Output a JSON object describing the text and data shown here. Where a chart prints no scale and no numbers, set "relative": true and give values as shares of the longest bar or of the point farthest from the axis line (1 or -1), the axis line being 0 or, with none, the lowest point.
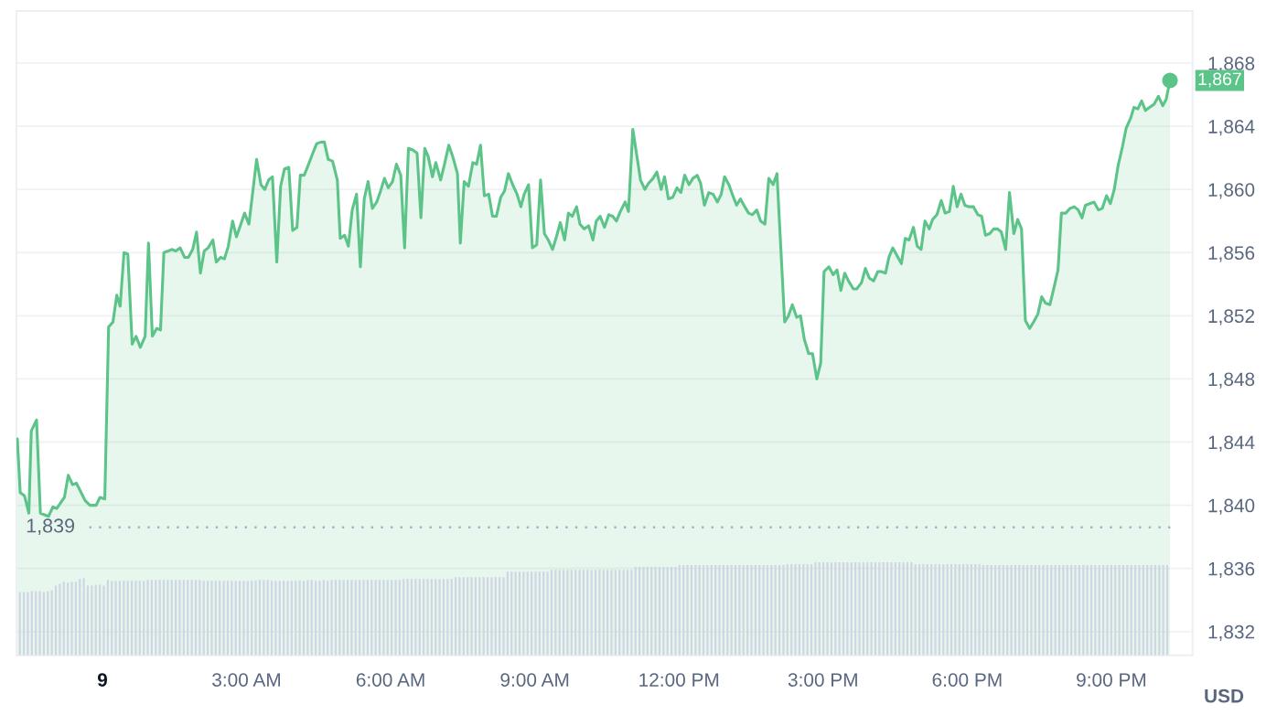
{
  "chart_data": [
    {
      "type": "line",
      "ylabel": "USD",
      "xlim": [
        -1.79,
        22.69
      ],
      "xticks": [
        {
          "value": 3,
          "label": "3:00 AM"
        },
        {
          "value": 6,
          "label": "6:00 AM"
        },
        {
          "value": 9,
          "label": "9:00 AM"
        },
        {
          "value": 12,
          "label": "12:00 PM"
        },
        {
          "value": 15,
          "label": "3:00 PM"
        },
        {
          "value": 18,
          "label": "6:00 PM"
        },
        {
          "value": 21,
          "label": "9:00 PM"
        }
      ],
      "annotations": [
        "9"
      ],
      "ylim": [
        1830.5,
        1871.3
      ],
      "yticks": [
        {
          "value": 1832,
          "label": "1,832"
        },
        {
          "value": 1836,
          "label": "1,836"
        },
        {
          "value": 1840,
          "label": "1,840"
        },
        {
          "value": 1844,
          "label": "1,844"
        },
        {
          "value": 1848,
          "label": "1,848"
        },
        {
          "value": 1852,
          "label": "1,852"
        },
        {
          "value": 1856,
          "label": "1,856"
        },
        {
          "value": 1860,
          "label": "1,860"
        },
        {
          "value": 1864,
          "label": "1,864"
        },
        {
          "value": 1868,
          "label": "1,868"
        }
      ],
      "grid": "y",
      "ref_lines": [
        {
          "axis": "y",
          "value": 1838.6,
          "label": "1,839",
          "line_style": "dotted",
          "color": "#a6b0c3"
        }
      ],
      "series": [
        {
          "type": "area",
          "color": "#5cc489",
          "x": [
            -1.77,
            -1.71,
            -1.62,
            -1.53,
            -1.48,
            -1.37,
            -1.29,
            -1.12,
            -1.03,
            -0.95,
            -0.79,
            -0.71,
            -0.62,
            -0.54,
            -0.36,
            -0.26,
            -0.13,
            -0.05,
            0.05,
            0.13,
            0.22,
            0.3,
            0.37,
            0.45,
            0.53,
            0.62,
            0.7,
            0.79,
            0.89,
            0.96,
            1.04,
            1.13,
            1.21,
            1.28,
            1.37,
            1.44,
            1.53,
            1.62,
            1.71,
            1.79,
            1.88,
            1.96,
            2.04,
            2.12,
            2.2,
            2.3,
            2.37,
            2.46,
            2.54,
            2.62,
            2.71,
            2.79,
            2.87,
            2.96,
            3.05,
            3.21,
            3.3,
            3.38,
            3.46,
            3.54,
            3.63,
            3.71,
            3.79,
            3.88,
            3.96,
            4.05,
            4.12,
            4.2,
            4.28,
            4.38,
            4.46,
            4.55,
            4.62,
            4.7,
            4.79,
            4.89,
            4.95,
            5.04,
            5.12,
            5.2,
            5.29,
            5.37,
            5.45,
            5.53,
            5.62,
            5.71,
            5.79,
            5.87,
            5.95,
            6.04,
            6.12,
            6.21,
            6.29,
            6.37,
            6.46,
            6.55,
            6.63,
            6.71,
            6.78,
            6.87,
            6.94,
            7.04,
            7.12,
            7.21,
            7.29,
            7.39,
            7.45,
            7.53,
            7.62,
            7.71,
            7.79,
            7.87,
            7.95,
            8.04,
            8.12,
            8.2,
            8.29,
            8.37,
            8.45,
            8.54,
            8.63,
            8.71,
            8.78,
            8.87,
            8.95,
            9.04,
            9.12,
            9.2,
            9.28,
            9.37,
            9.45,
            9.53,
            9.62,
            9.7,
            9.78,
            9.87,
            9.94,
            10.03,
            10.12,
            10.21,
            10.28,
            10.36,
            10.45,
            10.54,
            10.62,
            10.7,
            10.78,
            10.88,
            10.95,
            11.04,
            11.12,
            11.2,
            11.29,
            11.37,
            11.46,
            11.54,
            11.63,
            11.7,
            11.78,
            11.87,
            11.96,
            12.04,
            12.12,
            12.21,
            12.29,
            12.38,
            12.45,
            12.53,
            12.62,
            12.71,
            12.8,
            12.88,
            12.95,
            13.04,
            13.11,
            13.2,
            13.28,
            13.37,
            13.45,
            13.53,
            13.62,
            13.7,
            13.79,
            13.87,
            13.96,
            14.04,
            14.2,
            14.28,
            14.36,
            14.45,
            14.53,
            14.61,
            14.7,
            14.78,
            14.87,
            14.95,
            15.02,
            15.12,
            15.21,
            15.29,
            15.37,
            15.45,
            15.53,
            15.63,
            15.7,
            15.8,
            15.88,
            15.96,
            16.05,
            16.14,
            16.21,
            16.3,
            16.37,
            16.45,
            16.54,
            16.63,
            16.71,
            16.79,
            16.88,
            16.96,
            17.04,
            17.12,
            17.21,
            17.28,
            17.37,
            17.46,
            17.54,
            17.63,
            17.71,
            17.79,
            17.87,
            17.95,
            18.04,
            18.13,
            18.22,
            18.3,
            18.38,
            18.47,
            18.55,
            18.63,
            18.71,
            18.8,
            18.88,
            18.97,
            19.05,
            19.13,
            19.21,
            19.3,
            19.38,
            19.47,
            19.55,
            19.63,
            19.72,
            19.8,
            19.89,
            19.96,
            20.05,
            20.14,
            20.23,
            20.31,
            20.39,
            20.46,
            20.55,
            20.64,
            20.73,
            20.81,
            20.9,
            20.98,
            21.06,
            21.14,
            21.23,
            21.31,
            21.4,
            21.47,
            21.55,
            21.63,
            21.71,
            21.8,
            21.89,
            21.98,
            22.07,
            22.14,
            22.22
          ],
          "values": [
            1844.2,
            1840.8,
            1840.6,
            1839.5,
            1844.7,
            1845.4,
            1839.5,
            1839.3,
            1839.9,
            1839.8,
            1840.5,
            1841.9,
            1841.3,
            1841.4,
            1840.3,
            1840.0,
            1840.0,
            1840.5,
            1840.4,
            1851.3,
            1851.6,
            1853.3,
            1852.6,
            1856.0,
            1855.9,
            1850.2,
            1850.7,
            1850.0,
            1850.7,
            1856.6,
            1850.7,
            1851.2,
            1851.1,
            1856.0,
            1856.1,
            1856.2,
            1856.1,
            1856.3,
            1855.7,
            1855.7,
            1856.2,
            1857.3,
            1854.7,
            1856.1,
            1856.3,
            1856.8,
            1855.4,
            1855.7,
            1855.6,
            1856.4,
            1858.0,
            1857.0,
            1857.7,
            1858.5,
            1857.8,
            1861.9,
            1860.3,
            1860.0,
            1860.6,
            1860.8,
            1855.4,
            1860.2,
            1861.3,
            1861.4,
            1857.4,
            1857.6,
            1860.9,
            1860.9,
            1861.5,
            1862.3,
            1862.9,
            1863.0,
            1863.0,
            1861.9,
            1861.8,
            1860.6,
            1856.9,
            1857.1,
            1856.4,
            1858.7,
            1859.7,
            1855.1,
            1859.4,
            1860.5,
            1858.8,
            1859.2,
            1859.9,
            1860.7,
            1860.1,
            1860.5,
            1861.6,
            1860.9,
            1856.3,
            1862.6,
            1862.5,
            1862.3,
            1858.2,
            1862.6,
            1862.1,
            1860.8,
            1861.7,
            1860.6,
            1861.6,
            1862.8,
            1862.1,
            1861.0,
            1856.6,
            1860.5,
            1860.2,
            1861.7,
            1861.6,
            1862.8,
            1859.6,
            1859.7,
            1858.3,
            1858.3,
            1859.5,
            1859.9,
            1861.0,
            1860.3,
            1859.7,
            1858.9,
            1859.7,
            1860.3,
            1856.3,
            1856.5,
            1860.6,
            1857.2,
            1856.8,
            1856.2,
            1857.0,
            1857.9,
            1856.8,
            1858.5,
            1858.3,
            1858.9,
            1857.8,
            1857.5,
            1857.7,
            1856.8,
            1858.0,
            1858.3,
            1857.6,
            1858.4,
            1858.3,
            1858.0,
            1858.6,
            1859.2,
            1858.6,
            1863.8,
            1862.2,
            1860.6,
            1860.0,
            1860.4,
            1860.7,
            1861.1,
            1860.0,
            1860.8,
            1859.4,
            1859.5,
            1860.1,
            1859.8,
            1860.9,
            1860.3,
            1860.7,
            1860.9,
            1860.4,
            1859.0,
            1859.8,
            1859.7,
            1859.2,
            1859.7,
            1860.8,
            1860.3,
            1859.7,
            1859.0,
            1859.4,
            1858.9,
            1858.5,
            1858.4,
            1858.7,
            1858.0,
            1857.8,
            1860.7,
            1860.3,
            1861.0,
            1851.6,
            1852.0,
            1852.7,
            1851.9,
            1852.0,
            1850.5,
            1849.6,
            1849.6,
            1848.0,
            1849.0,
            1854.8,
            1855.1,
            1854.6,
            1854.9,
            1853.6,
            1854.7,
            1854.2,
            1853.7,
            1853.7,
            1854.1,
            1855.0,
            1854.4,
            1854.2,
            1854.8,
            1854.8,
            1854.7,
            1855.7,
            1856.3,
            1855.8,
            1855.3,
            1856.9,
            1856.8,
            1857.6,
            1856.4,
            1856.2,
            1858.0,
            1857.5,
            1858.1,
            1858.4,
            1859.3,
            1858.5,
            1858.6,
            1860.2,
            1858.9,
            1859.7,
            1859.0,
            1858.9,
            1858.9,
            1858.4,
            1858.3,
            1857.1,
            1857.2,
            1857.5,
            1857.5,
            1857.3,
            1856.2,
            1859.8,
            1857.2,
            1858.1,
            1857.5,
            1851.7,
            1851.2,
            1851.6,
            1852.1,
            1853.2,
            1852.8,
            1852.7,
            1853.7,
            1854.9,
            1858.5,
            1858.5,
            1858.8,
            1858.9,
            1858.7,
            1858.2,
            1859.0,
            1859.1,
            1859.2,
            1858.7,
            1858.8,
            1859.6,
            1859.1,
            1860.0,
            1861.5,
            1862.7,
            1863.9,
            1864.5,
            1865.2,
            1865.1,
            1865.6,
            1865.0,
            1865.2,
            1865.4,
            1865.9,
            1865.3,
            1865.7,
            1866.9
          ]
        },
        {
          "type": "scatter",
          "color": "#5cc489",
          "marker": "circle",
          "x": [
            22.22
          ],
          "values": [
            1866.9
          ],
          "value_labels": [
            "1,867"
          ]
        }
      ]
    },
    {
      "type": "bar",
      "relative": true,
      "color": "#cfd5e3",
      "categories": [
        null,
        null,
        null,
        null,
        null,
        null,
        null,
        null,
        null,
        null,
        null,
        null,
        null,
        null,
        null,
        null,
        null,
        null,
        null,
        null,
        null,
        null,
        null,
        null,
        null,
        null,
        null,
        null,
        null,
        null,
        null,
        null,
        null,
        null,
        null,
        null,
        null,
        null,
        null,
        null,
        null,
        null,
        null,
        null,
        null,
        null,
        null,
        null,
        null,
        null,
        null,
        null,
        null,
        null,
        null,
        null,
        null,
        null,
        null,
        null,
        null,
        null,
        null,
        null,
        null,
        null,
        null,
        null,
        null,
        null,
        null,
        null,
        null,
        null,
        null,
        null,
        null,
        null,
        null,
        null,
        null,
        null,
        null,
        null,
        null,
        null,
        null,
        null,
        null,
        null,
        null,
        null,
        null,
        null,
        null,
        null,
        null,
        null,
        null,
        null,
        null,
        null,
        null,
        null,
        null,
        null,
        null,
        null,
        null,
        null,
        null,
        null,
        null,
        null,
        null,
        null,
        null,
        null,
        null,
        null,
        null,
        null,
        null,
        null,
        null,
        null,
        null,
        null,
        null,
        null,
        null,
        null,
        null,
        null,
        null,
        null,
        null,
        null,
        null,
        null,
        null,
        null,
        null,
        null,
        null,
        null,
        null,
        null,
        null,
        null,
        null,
        null,
        null,
        null,
        null,
        null,
        null,
        null,
        null,
        null,
        null,
        null,
        null,
        null,
        null,
        null,
        null,
        null,
        null,
        null,
        null,
        null,
        null,
        null,
        null,
        null,
        null,
        null,
        null,
        null,
        null,
        null,
        null,
        null,
        null,
        null,
        null,
        null,
        null,
        null,
        null,
        null,
        null,
        null,
        null,
        null,
        null,
        null,
        null,
        null,
        null,
        null,
        null,
        null,
        null,
        null,
        null,
        null,
        null,
        null,
        null,
        null,
        null,
        null,
        null,
        null,
        null,
        null,
        null,
        null,
        null,
        null,
        null,
        null,
        null,
        null,
        null,
        null,
        null,
        null,
        null,
        null,
        null,
        null,
        null,
        null,
        null,
        null,
        null,
        null,
        null,
        null,
        null,
        null,
        null,
        null,
        null,
        null,
        null,
        null,
        null,
        null,
        null,
        null,
        null,
        null,
        null,
        null,
        null,
        null,
        null,
        null,
        null,
        null,
        null,
        null,
        null,
        null,
        null,
        null,
        null,
        null,
        null,
        null,
        null,
        null,
        null,
        null,
        null,
        null,
        null,
        null,
        null,
        null,
        null,
        null,
        null,
        null
      ],
      "values": [
        0.68,
        0.68,
        0.68,
        0.69,
        0.69,
        0.69,
        0.68,
        0.69,
        0.7,
        0.75,
        0.77,
        0.79,
        0.78,
        0.79,
        0.79,
        0.82,
        0.83,
        0.75,
        0.75,
        0.76,
        0.76,
        0.75,
        0.81,
        0.8,
        0.8,
        0.8,
        0.8,
        0.8,
        0.8,
        0.8,
        0.8,
        0.8,
        0.81,
        0.81,
        0.81,
        0.81,
        0.81,
        0.81,
        0.81,
        0.81,
        0.81,
        0.81,
        0.81,
        0.81,
        0.81,
        0.81,
        0.8,
        0.8,
        0.8,
        0.8,
        0.8,
        0.8,
        0.8,
        0.8,
        0.8,
        0.8,
        0.8,
        0.8,
        0.8,
        0.8,
        0.81,
        0.81,
        0.81,
        0.8,
        0.8,
        0.8,
        0.8,
        0.8,
        0.8,
        0.8,
        0.8,
        0.8,
        0.81,
        0.81,
        0.8,
        0.8,
        0.81,
        0.8,
        0.81,
        0.81,
        0.81,
        0.81,
        0.81,
        0.81,
        0.81,
        0.81,
        0.81,
        0.81,
        0.81,
        0.81,
        0.81,
        0.81,
        0.81,
        0.81,
        0.81,
        0.81,
        0.82,
        0.82,
        0.82,
        0.82,
        0.82,
        0.82,
        0.82,
        0.82,
        0.82,
        0.82,
        0.82,
        0.82,
        0.82,
        0.84,
        0.84,
        0.84,
        0.84,
        0.84,
        0.84,
        0.84,
        0.84,
        0.84,
        0.84,
        0.84,
        0.84,
        0.84,
        0.9,
        0.9,
        0.9,
        0.9,
        0.9,
        0.9,
        0.9,
        0.9,
        0.9,
        0.9,
        0.9,
        0.92,
        0.92,
        0.92,
        0.92,
        0.92,
        0.92,
        0.92,
        0.92,
        0.92,
        0.92,
        0.92,
        0.92,
        0.92,
        0.92,
        0.92,
        0.92,
        0.92,
        0.92,
        0.92,
        0.92,
        0.92,
        0.95,
        0.95,
        0.95,
        0.95,
        0.95,
        0.95,
        0.95,
        0.95,
        0.95,
        0.95,
        0.95,
        0.97,
        0.97,
        0.97,
        0.97,
        0.97,
        0.97,
        0.97,
        0.97,
        0.97,
        0.97,
        0.97,
        0.97,
        0.97,
        0.97,
        0.97,
        0.97,
        0.97,
        0.97,
        0.97,
        0.97,
        0.97,
        0.97,
        0.97,
        0.97,
        0.97,
        0.97,
        0.97,
        0.98,
        0.98,
        0.98,
        0.98,
        0.98,
        0.98,
        0.98,
        1,
        1,
        1,
        1,
        1,
        1,
        1,
        1,
        1,
        1,
        1,
        1,
        1,
        1,
        1,
        1,
        1,
        1,
        1,
        1,
        1,
        1,
        1,
        1,
        1,
        0.98,
        0.98,
        0.98,
        0.98,
        0.98,
        0.98,
        0.98,
        0.98,
        0.98,
        0.98,
        0.98,
        0.98,
        0.98,
        0.98,
        0.98,
        0.98,
        0.98,
        0.97,
        0.97,
        0.97,
        0.97,
        0.97,
        0.97,
        0.97,
        0.97,
        0.97,
        0.97,
        0.97,
        0.97,
        0.97,
        0.97,
        0.97,
        0.97,
        0.97,
        0.97,
        0.97,
        0.97,
        0.97,
        0.97,
        0.97,
        0.97,
        0.97,
        0.97,
        0.97,
        0.97,
        0.97,
        0.97,
        0.97,
        0.97,
        0.97,
        0.97,
        0.97,
        0.97,
        0.97,
        0.97,
        0.97,
        0.97,
        0.97,
        0.97,
        0.97,
        0.97,
        0.97,
        0.97,
        0.97
      ]
    }
  ]
}
